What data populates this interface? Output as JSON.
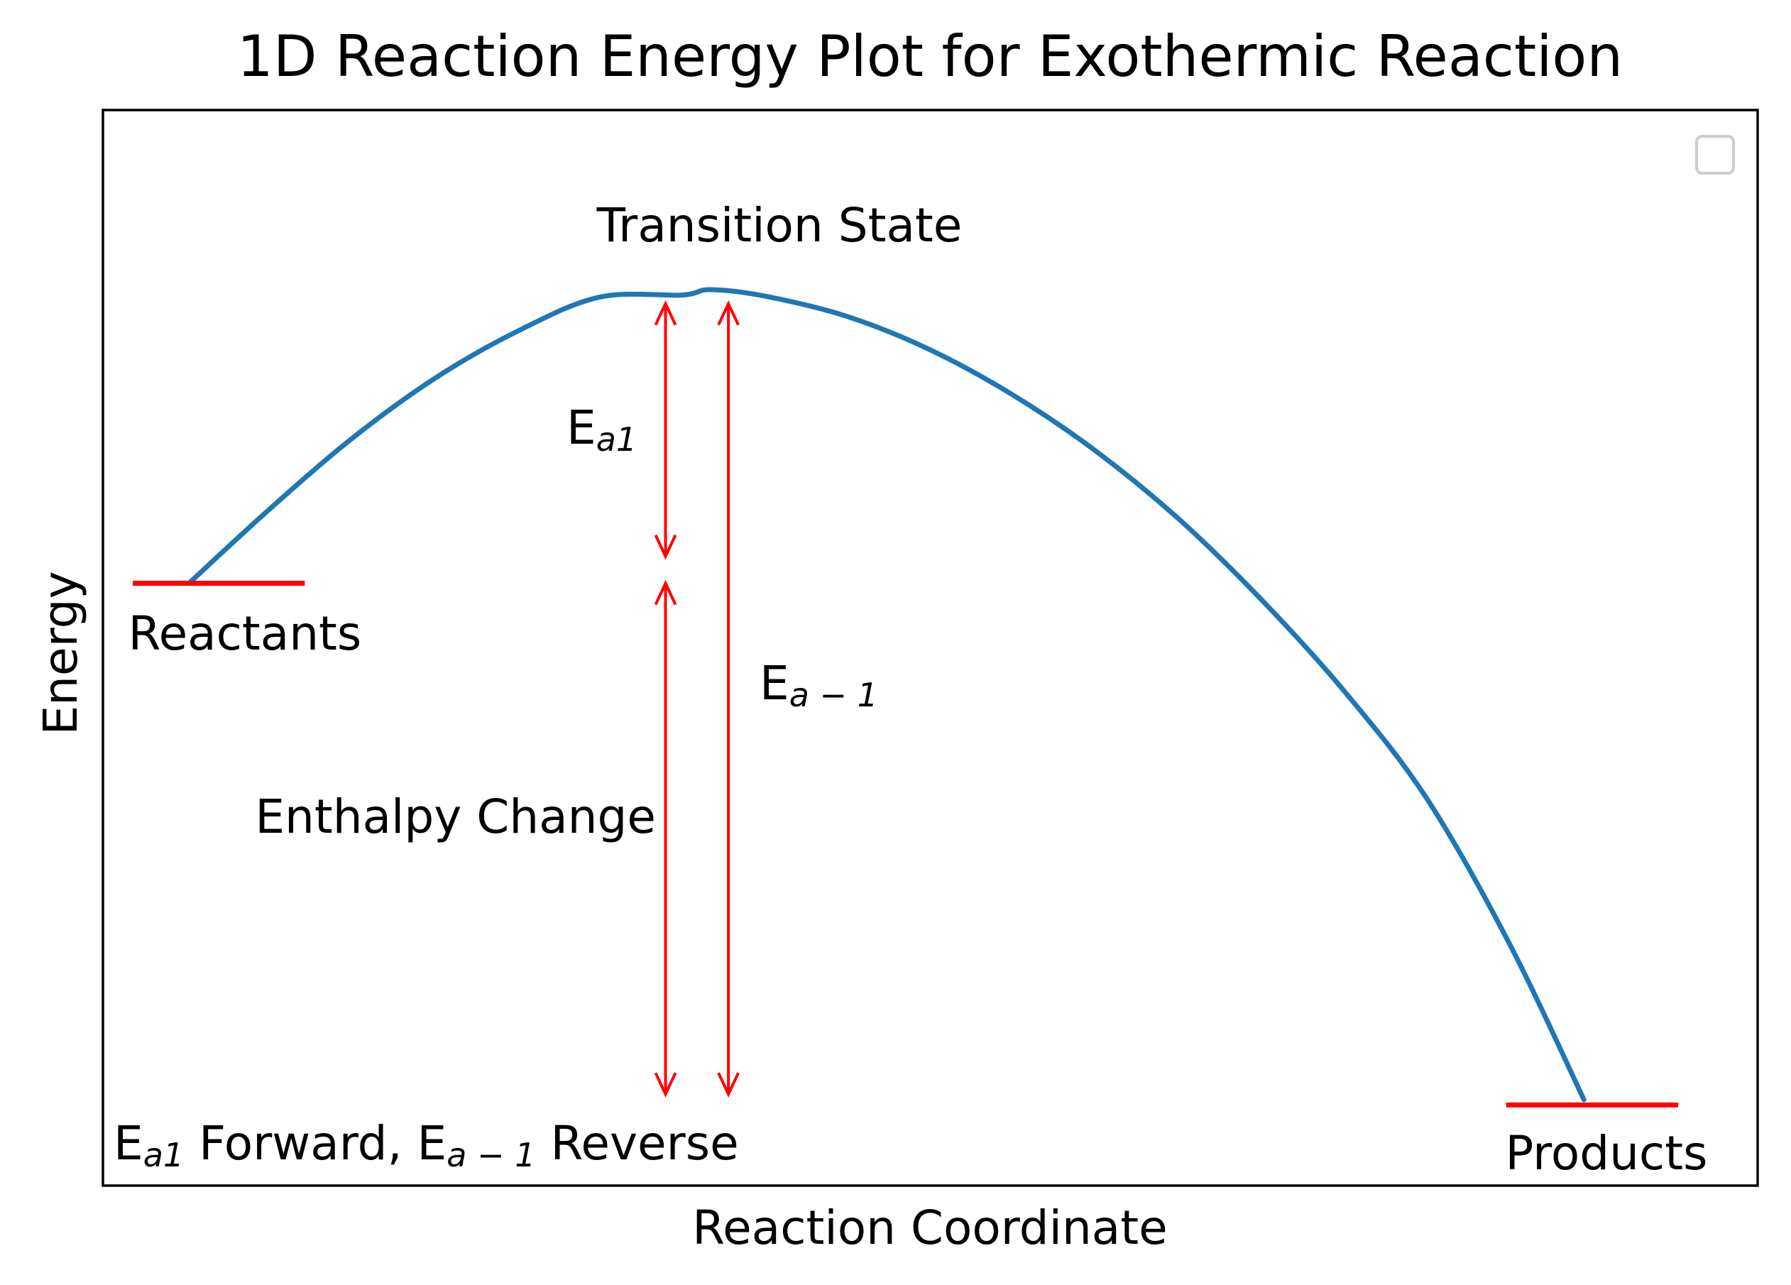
{
  "chart_data": {
    "type": "line",
    "title": "1D Reaction Energy Plot for Exothermic Reaction",
    "xlabel": "Reaction Coordinate",
    "ylabel": "Energy",
    "xlim": [
      0,
      10
    ],
    "ylim": [
      0,
      10
    ],
    "grid": false,
    "legend": "top-right, empty",
    "xticks": [],
    "yticks": [],
    "colors": {
      "curve": "#1f77b4",
      "levels": "#ff0000",
      "arrows": "#ff0000",
      "legend_border": "#cccccc"
    },
    "series": [
      {
        "x": [
          0.52,
          1.0,
          1.5,
          2.0,
          2.5,
          3.0,
          3.5,
          3.67,
          4.0,
          4.5,
          5.0,
          5.5,
          6.0,
          6.5,
          7.0,
          7.5,
          8.0,
          8.5,
          8.95
        ],
        "y": [
          5.6,
          6.28,
          6.94,
          7.5,
          7.94,
          8.26,
          8.28,
          8.33,
          8.27,
          8.08,
          7.77,
          7.35,
          6.83,
          6.2,
          5.45,
          4.6,
          3.6,
          2.25,
          0.8
        ]
      }
    ],
    "levels": [
      {
        "label": "Reactants",
        "x": [
          0.18,
          1.22
        ],
        "y": 5.6
      },
      {
        "label": "Products",
        "x": [
          8.48,
          9.52
        ],
        "y": 0.75
      }
    ],
    "arrows": [
      {
        "label": "E",
        "sub": "a1",
        "x": 3.4,
        "y1": 5.85,
        "y2": 8.2
      },
      {
        "label": "Enthalpy Change",
        "x": 3.4,
        "y1": 0.85,
        "y2": 5.6
      },
      {
        "label": "E",
        "sub": "a − 1",
        "x": 3.78,
        "y1": 0.85,
        "y2": 8.2
      }
    ],
    "annotations": {
      "transition_state": "Transition State",
      "footer_e1": "E",
      "footer_e1_sub": "a1",
      "footer_mid": " Forward, E",
      "footer_e2_sub": "a − 1",
      "footer_end": " Reverse"
    }
  }
}
